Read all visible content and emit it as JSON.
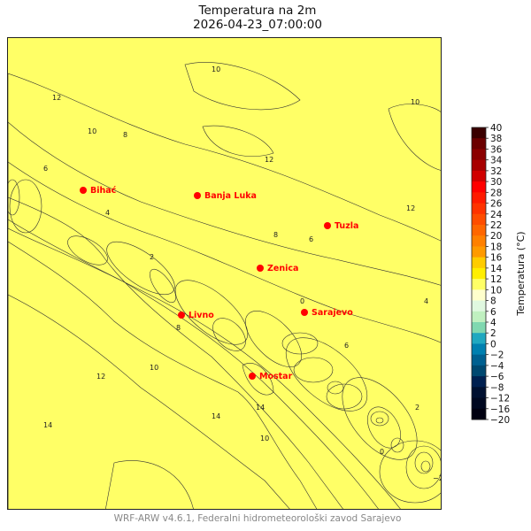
{
  "title": "Temperatura na 2m",
  "subtitle": "2026-04-23_07:00:00",
  "footer": "WRF-ARW v4.6.1, Federalni hidrometeorološki zavod Sarajevo",
  "colorbar": {
    "label": "Temperatura (°C)",
    "ticks": [
      "40",
      "38",
      "36",
      "34",
      "32",
      "30",
      "28",
      "26",
      "24",
      "22",
      "20",
      "18",
      "16",
      "14",
      "12",
      "10",
      "8",
      "6",
      "4",
      "2",
      "0",
      "−2",
      "−4",
      "−6",
      "−8",
      "−12",
      "−16",
      "−20"
    ],
    "bin_colors": [
      "#3a0000",
      "#6b0000",
      "#8b0000",
      "#a80000",
      "#d00000",
      "#ff0000",
      "#ff1a00",
      "#ff3300",
      "#ff4d00",
      "#ff6600",
      "#ff8000",
      "#ff9a00",
      "#ffcc00",
      "#ffee00",
      "#ffff66",
      "#ffffcc",
      "#e0f8e0",
      "#c0f0c0",
      "#80d8b0",
      "#20a8c0",
      "#0080b0",
      "#006090",
      "#004870",
      "#002050",
      "#001030",
      "#000820",
      "#000010"
    ]
  },
  "cities": [
    "Bihać",
    "Banja Luka",
    "Tuzla",
    "Zenica",
    "Livno",
    "Sarajevo",
    "Mostar"
  ],
  "contour_labels": [
    "10",
    "12",
    "8",
    "10",
    "12",
    "6",
    "4",
    "2",
    "0",
    "8",
    "10",
    "12",
    "14",
    "14",
    "10",
    "12",
    "6",
    "4",
    "2",
    "0",
    "−2",
    "6",
    "8",
    "10",
    "14"
  ],
  "city_color": "#ff0000"
}
